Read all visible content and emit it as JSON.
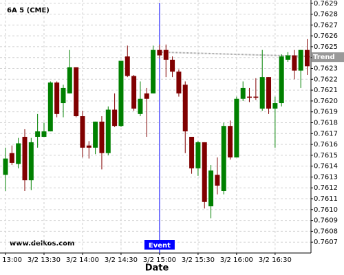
{
  "chart_data": {
    "type": "candlestick",
    "title": "6A 5 (CME)",
    "watermark": "www.delkos.com",
    "x_label": "Date",
    "categories": [
      "3/2 13:00",
      null,
      null,
      null,
      null,
      null,
      "3/2 13:30",
      null,
      null,
      null,
      null,
      null,
      "3/2 14:00",
      null,
      null,
      null,
      null,
      null,
      "3/2 14:30",
      null,
      null,
      null,
      null,
      null,
      "3/2 15:00",
      null,
      null,
      null,
      null,
      null,
      "3/2 15:30",
      null,
      null,
      null,
      null,
      null,
      "3/2 16:00",
      null,
      null,
      null,
      null,
      null,
      "3/2 16:30",
      null,
      null,
      null,
      null,
      null
    ],
    "open": [
      0.76132,
      0.76152,
      0.76142,
      0.76167,
      0.76127,
      0.76167,
      0.76167,
      0.76172,
      0.76217,
      0.76198,
      0.76207,
      0.76231,
      0.76186,
      0.76159,
      0.76157,
      0.76181,
      0.76152,
      0.76192,
      0.76177,
      0.76241,
      0.76223,
      0.76188,
      0.76207,
      0.76207,
      0.76247,
      0.76247,
      0.76238,
      0.76227,
      0.76215,
      0.76167,
      0.76138,
      0.76162,
      0.76103,
      0.76132,
      0.76117,
      0.76177,
      0.76148,
      0.76202,
      0.76204,
      0.76204,
      0.76193,
      0.76222,
      0.76193,
      0.76198,
      0.76238,
      0.76242,
      0.76228,
      0.76247
    ],
    "high": [
      0.76157,
      0.76159,
      0.76166,
      0.76174,
      0.76166,
      0.76188,
      0.7618,
      0.76218,
      0.76218,
      0.76215,
      0.76247,
      0.76231,
      0.76191,
      0.76163,
      0.76181,
      0.76186,
      0.76195,
      0.76207,
      0.76237,
      0.76251,
      0.76224,
      0.76218,
      0.76212,
      0.76251,
      0.76252,
      0.76252,
      0.76241,
      0.76229,
      0.76218,
      0.76167,
      0.76163,
      0.76162,
      0.76141,
      0.76148,
      0.7618,
      0.76182,
      0.76204,
      0.76218,
      0.76212,
      0.76221,
      0.76247,
      0.76222,
      0.76204,
      0.76243,
      0.76245,
      0.76247,
      0.76247,
      0.76257
    ],
    "low": [
      0.76117,
      0.76141,
      0.76138,
      0.76117,
      0.76118,
      0.76157,
      0.76167,
      0.76172,
      0.76185,
      0.76185,
      0.76207,
      0.76185,
      0.76148,
      0.76147,
      0.76151,
      0.76137,
      0.7615,
      0.76176,
      0.76176,
      0.76222,
      0.76191,
      0.76186,
      0.76167,
      0.76207,
      0.76239,
      0.76222,
      0.76222,
      0.76204,
      0.76152,
      0.76133,
      0.76131,
      0.76101,
      0.76092,
      0.76114,
      0.76114,
      0.76146,
      0.76148,
      0.762,
      0.76199,
      0.76201,
      0.76191,
      0.76188,
      0.76157,
      0.76195,
      0.76236,
      0.7622,
      0.76212,
      0.76224
    ],
    "close": [
      0.76147,
      0.76143,
      0.76161,
      0.76127,
      0.76162,
      0.76172,
      0.76172,
      0.76217,
      0.76188,
      0.76212,
      0.76231,
      0.76186,
      0.76157,
      0.76157,
      0.76181,
      0.76152,
      0.76192,
      0.76177,
      0.76237,
      0.76223,
      0.76193,
      0.76202,
      0.76202,
      0.76247,
      0.76242,
      0.76238,
      0.76227,
      0.76207,
      0.76172,
      0.76138,
      0.76162,
      0.76107,
      0.76136,
      0.76122,
      0.76177,
      0.76148,
      0.76202,
      0.76212,
      0.76203,
      0.76203,
      0.76222,
      0.76193,
      0.76198,
      0.76241,
      0.76242,
      0.76228,
      0.76247,
      0.76232
    ],
    "up_color": "#008000",
    "down_color": "#800000",
    "ylim": [
      0.7606,
      0.76293
    ],
    "yticks": [
      0.7607,
      0.7608,
      0.7609,
      {
        "value": 0.761,
        "label": "0.7610"
      },
      0.7611,
      0.7612,
      0.7613,
      0.7614,
      0.7615,
      0.7616,
      0.7617,
      0.7618,
      0.7619,
      {
        "value": 0.762,
        "label": "0.7620"
      },
      0.7621,
      0.7622,
      0.7623,
      0.7624,
      0.7625,
      0.7626,
      0.7627,
      0.7628,
      0.7629
    ],
    "grid": true,
    "event": {
      "label": "Event",
      "x": "3/2 15:00",
      "color": "#0000ff"
    },
    "trend": {
      "label": "Trend",
      "x": "3/2 15:00",
      "values": [
        0.76245,
        0.76241
      ],
      "color": "#999999"
    }
  }
}
